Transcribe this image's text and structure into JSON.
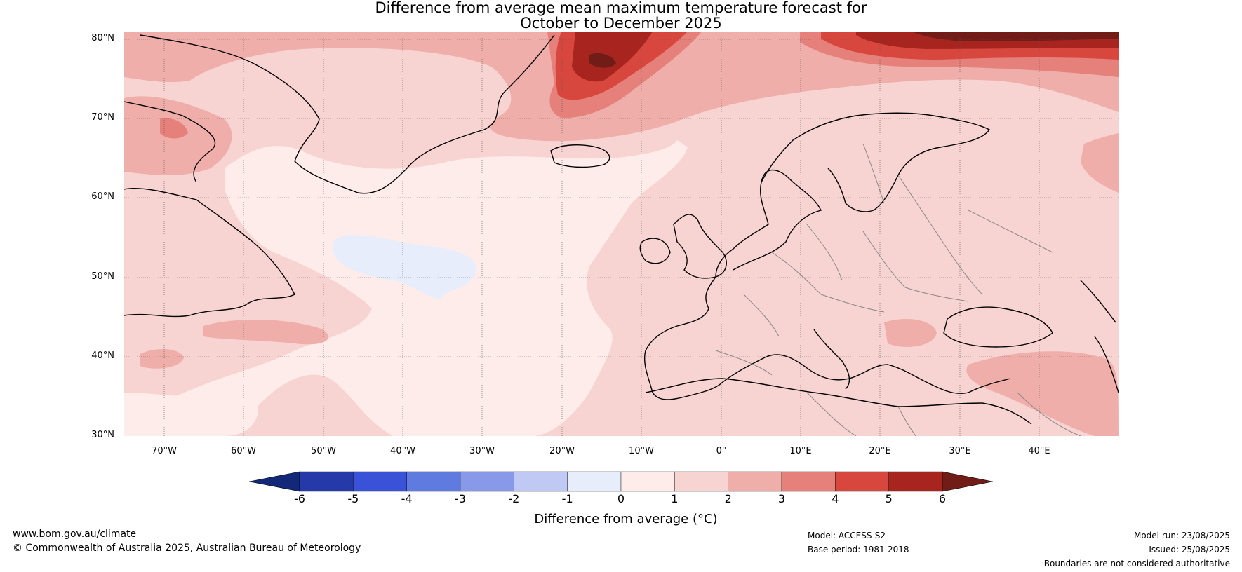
{
  "title_line1": "Difference from average mean maximum temperature forecast for",
  "title_line2": "October to December 2025",
  "lat_ticks": [
    "80°N",
    "70°N",
    "60°N",
    "50°N",
    "40°N",
    "30°N"
  ],
  "lon_ticks": [
    "70°W",
    "60°W",
    "50°W",
    "40°W",
    "30°W",
    "20°W",
    "10°W",
    "0°",
    "10°E",
    "20°E",
    "30°E",
    "40°E"
  ],
  "colorbar": {
    "label": "Difference from average (°C)",
    "ticks": [
      "-6",
      "-5",
      "-4",
      "-3",
      "-2",
      "-1",
      "0",
      "1",
      "2",
      "3",
      "4",
      "5",
      "6"
    ],
    "colors": [
      "#14287a",
      "#2539a8",
      "#3a52d8",
      "#5f7be0",
      "#8799e8",
      "#bfc9f3",
      "#e8edfc",
      "#fdecea",
      "#f7d3d1",
      "#efaeaa",
      "#e5807b",
      "#d8473e",
      "#a8241f",
      "#721c18"
    ]
  },
  "footer": {
    "website": "www.bom.gov.au/climate",
    "copyright": "© Commonwealth of Australia 2025, Australian Bureau of Meteorology",
    "model": "Model: ACCESS-S2",
    "base_period": "Base period: 1981-2018",
    "model_run": "Model run: 23/08/2025",
    "issued": "Issued: 25/08/2025",
    "boundaries": "Boundaries are not considered authoritative"
  },
  "map_style": {
    "background_anomaly": "#f7d3d1",
    "ocean_cool": "#fdecea",
    "coast_color": "#000000",
    "border_color": "#888888"
  }
}
